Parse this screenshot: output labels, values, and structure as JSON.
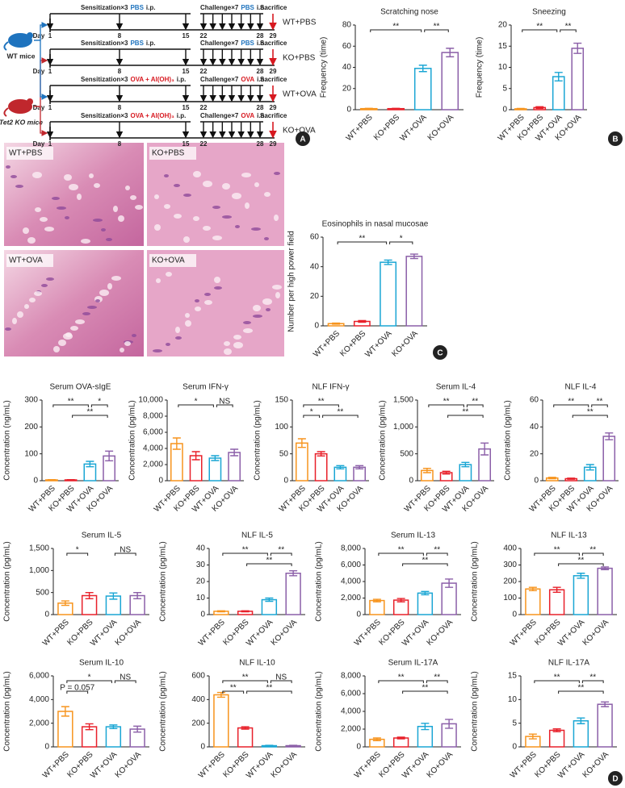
{
  "panel_labels": [
    "A",
    "B",
    "C",
    "D"
  ],
  "protocol": {
    "day_label": "Day",
    "days": [
      1,
      8,
      15,
      22,
      28,
      29
    ],
    "mice": [
      "WT mice",
      "Tet2 KO mice"
    ],
    "rows": [
      {
        "sensitization": "Sensitization×3",
        "sens_agent": "PBS",
        "sens_route": "i.p.",
        "challenge": "Challenge×7",
        "chal_agent": "PBS",
        "chal_route": "i.n.",
        "sacrifice": "Sacrifice",
        "group": "WT+PBS"
      },
      {
        "sensitization": "Sensitization×3",
        "sens_agent": "PBS",
        "sens_route": "i.p.",
        "challenge": "Challenge×7",
        "chal_agent": "PBS",
        "chal_route": "i.n.",
        "sacrifice": "Sacrifice",
        "group": "KO+PBS"
      },
      {
        "sensitization": "Sensitization×3",
        "sens_agent": "OVA + Al(OH)₃",
        "sens_route": "i.p.",
        "challenge": "Challenge×7",
        "chal_agent": "OVA",
        "chal_route": "i.n.",
        "sacrifice": "Sacrifice",
        "group": "WT+OVA"
      },
      {
        "sensitization": "Sensitization×3",
        "sens_agent": "OVA + Al(OH)₃",
        "sens_route": "i.p.",
        "challenge": "Challenge×7",
        "chal_agent": "OVA",
        "chal_route": "i.n.",
        "sacrifice": "Sacrifice",
        "group": "KO+OVA"
      }
    ]
  },
  "histology": {
    "labels": [
      "WT+PBS",
      "KO+PBS",
      "WT+OVA",
      "KO+OVA"
    ]
  },
  "chart_data": [
    {
      "type": "bar",
      "title": "Scratching nose",
      "ylabel": "Frequency (time)",
      "categories": [
        "WT+PBS",
        "KO+PBS",
        "WT+OVA",
        "KO+OVA"
      ],
      "colors": [
        "#f7941d",
        "#e8202a",
        "#1aa6d4",
        "#8b5fa8"
      ],
      "values": [
        1,
        1,
        39,
        54
      ],
      "errors": [
        0.3,
        0.3,
        3,
        4
      ],
      "ylim": [
        0,
        80
      ],
      "yticks": [
        0,
        20,
        40,
        60,
        80
      ],
      "brackets": [
        {
          "label": "**",
          "from": "WT+PBS",
          "to": "WT+OVA"
        },
        {
          "label": "**",
          "from": "WT+OVA",
          "to": "KO+OVA"
        }
      ]
    },
    {
      "type": "bar",
      "title": "Sneezing",
      "ylabel": "Frequency (time)",
      "categories": [
        "WT+PBS",
        "KO+PBS",
        "WT+OVA",
        "KO+OVA"
      ],
      "colors": [
        "#f7941d",
        "#e8202a",
        "#1aa6d4",
        "#8b5fa8"
      ],
      "values": [
        0.2,
        0.5,
        7.8,
        14.5
      ],
      "errors": [
        0.1,
        0.2,
        1,
        1.2
      ],
      "ylim": [
        0,
        20
      ],
      "yticks": [
        0,
        5,
        10,
        15,
        20
      ],
      "brackets": [
        {
          "label": "**",
          "from": "WT+PBS",
          "to": "WT+OVA"
        },
        {
          "label": "**",
          "from": "WT+OVA",
          "to": "KO+OVA"
        }
      ]
    },
    {
      "type": "bar",
      "title": "Eosinophils in nasal mucosae",
      "ylabel": "Number per high power field",
      "categories": [
        "WT+PBS",
        "KO+PBS",
        "WT+OVA",
        "KO+OVA"
      ],
      "colors": [
        "#f7941d",
        "#e8202a",
        "#1aa6d4",
        "#8b5fa8"
      ],
      "values": [
        1.5,
        3,
        43,
        47
      ],
      "errors": [
        0.4,
        0.6,
        1.5,
        1.5
      ],
      "ylim": [
        0,
        60
      ],
      "yticks": [
        0,
        20,
        40,
        60
      ],
      "brackets": [
        {
          "label": "**",
          "from": "WT+PBS",
          "to": "WT+OVA"
        },
        {
          "label": "*",
          "from": "WT+OVA",
          "to": "KO+OVA"
        }
      ]
    },
    {
      "type": "bar",
      "title": "Serum OVA-sIgE",
      "ylabel": "Concentration (ng/mL)",
      "categories": [
        "WT+PBS",
        "KO+PBS",
        "WT+OVA",
        "KO+OVA"
      ],
      "colors": [
        "#f7941d",
        "#e8202a",
        "#1aa6d4",
        "#8b5fa8"
      ],
      "values": [
        3,
        3,
        62,
        92
      ],
      "errors": [
        1,
        1,
        10,
        18
      ],
      "ylim": [
        0,
        300
      ],
      "yticks": [
        0,
        100,
        200,
        300
      ],
      "brackets": [
        {
          "label": "**",
          "from": "WT+PBS",
          "to": "WT+OVA"
        },
        {
          "label": "*",
          "from": "WT+OVA",
          "to": "KO+OVA"
        },
        {
          "label": "**",
          "from": "KO+PBS",
          "to": "KO+OVA"
        }
      ]
    },
    {
      "type": "bar",
      "title": "Serum IFN-γ",
      "ylabel": "Concentration (pg/mL)",
      "categories": [
        "WT+PBS",
        "KO+PBS",
        "WT+OVA",
        "KO+OVA"
      ],
      "colors": [
        "#f7941d",
        "#e8202a",
        "#1aa6d4",
        "#8b5fa8"
      ],
      "values": [
        4600,
        3100,
        2800,
        3500
      ],
      "errors": [
        700,
        500,
        300,
        400
      ],
      "ylim": [
        0,
        10000
      ],
      "yticks": [
        0,
        {
          "value": 2000,
          "label": "2,000"
        },
        {
          "value": 4000,
          "label": "4,000"
        },
        {
          "value": 6000,
          "label": "6,000"
        },
        {
          "value": 8000,
          "label": "8,000"
        },
        {
          "value": 10000,
          "label": "10,000"
        }
      ],
      "brackets": [
        {
          "label": "*",
          "from": "WT+PBS",
          "to": "WT+OVA"
        },
        {
          "label": "NS",
          "from": "WT+OVA",
          "to": "KO+OVA"
        }
      ]
    },
    {
      "type": "bar",
      "title": "NLF IFN-γ",
      "ylabel": "Concentration (pg/mL)",
      "categories": [
        "WT+PBS",
        "KO+PBS",
        "WT+OVA",
        "KO+OVA"
      ],
      "colors": [
        "#f7941d",
        "#e8202a",
        "#1aa6d4",
        "#8b5fa8"
      ],
      "values": [
        70,
        50,
        25,
        25
      ],
      "errors": [
        8,
        4,
        3,
        3
      ],
      "ylim": [
        0,
        150
      ],
      "yticks": [
        0,
        50,
        100,
        150
      ],
      "brackets": [
        {
          "label": "**",
          "from": "WT+PBS",
          "to": "WT+OVA"
        },
        {
          "label": "*",
          "from": "WT+PBS",
          "to": "KO+PBS"
        },
        {
          "label": "**",
          "from": "KO+PBS",
          "to": "KO+OVA"
        }
      ]
    },
    {
      "type": "bar",
      "title": "Serum IL-4",
      "ylabel": "Concentration (pg/mL)",
      "categories": [
        "WT+PBS",
        "KO+PBS",
        "WT+OVA",
        "KO+OVA"
      ],
      "colors": [
        "#f7941d",
        "#e8202a",
        "#1aa6d4",
        "#8b5fa8"
      ],
      "values": [
        190,
        150,
        300,
        590
      ],
      "errors": [
        40,
        25,
        40,
        110
      ],
      "ylim": [
        0,
        1500
      ],
      "yticks": [
        0,
        500,
        {
          "value": 1000,
          "label": "1,000"
        },
        {
          "value": 1500,
          "label": "1,500"
        }
      ],
      "brackets": [
        {
          "label": "**",
          "from": "WT+PBS",
          "to": "WT+OVA"
        },
        {
          "label": "**",
          "from": "WT+OVA",
          "to": "KO+OVA"
        },
        {
          "label": "**",
          "from": "KO+PBS",
          "to": "KO+OVA"
        }
      ]
    },
    {
      "type": "bar",
      "title": "NLF IL-4",
      "ylabel": "Concentration (pg/mL)",
      "categories": [
        "WT+PBS",
        "KO+PBS",
        "WT+OVA",
        "KO+OVA"
      ],
      "colors": [
        "#f7941d",
        "#e8202a",
        "#1aa6d4",
        "#8b5fa8"
      ],
      "values": [
        2,
        1.5,
        10,
        33
      ],
      "errors": [
        0.5,
        0.4,
        2,
        2.5
      ],
      "ylim": [
        0,
        60
      ],
      "yticks": [
        0,
        20,
        40,
        60
      ],
      "brackets": [
        {
          "label": "**",
          "from": "WT+PBS",
          "to": "WT+OVA"
        },
        {
          "label": "**",
          "from": "WT+OVA",
          "to": "KO+OVA"
        },
        {
          "label": "**",
          "from": "KO+PBS",
          "to": "KO+OVA"
        }
      ]
    },
    {
      "type": "bar",
      "title": "Serum IL-5",
      "ylabel": "Concentration (pg/mL)",
      "categories": [
        "WT+PBS",
        "KO+PBS",
        "WT+OVA",
        "KO+OVA"
      ],
      "colors": [
        "#f7941d",
        "#e8202a",
        "#1aa6d4",
        "#8b5fa8"
      ],
      "values": [
        260,
        430,
        420,
        430
      ],
      "errors": [
        50,
        70,
        70,
        70
      ],
      "ylim": [
        0,
        1500
      ],
      "yticks": [
        0,
        500,
        {
          "value": 1000,
          "label": "1,000"
        },
        {
          "value": 1500,
          "label": "1,500"
        }
      ],
      "brackets": [
        {
          "label": "*",
          "from": "WT+PBS",
          "to": "KO+PBS"
        },
        {
          "label": "NS",
          "from": "WT+OVA",
          "to": "KO+OVA"
        }
      ]
    },
    {
      "type": "bar",
      "title": "NLF IL-5",
      "ylabel": "Concentration (pg/mL)",
      "categories": [
        "WT+PBS",
        "KO+PBS",
        "WT+OVA",
        "KO+OVA"
      ],
      "colors": [
        "#f7941d",
        "#e8202a",
        "#1aa6d4",
        "#8b5fa8"
      ],
      "values": [
        2,
        2,
        9,
        25
      ],
      "errors": [
        0.3,
        0.3,
        1,
        1.5
      ],
      "ylim": [
        0,
        40
      ],
      "yticks": [
        0,
        10,
        20,
        30,
        40
      ],
      "brackets": [
        {
          "label": "**",
          "from": "WT+PBS",
          "to": "WT+OVA"
        },
        {
          "label": "**",
          "from": "WT+OVA",
          "to": "KO+OVA"
        },
        {
          "label": "**",
          "from": "KO+PBS",
          "to": "KO+OVA"
        }
      ]
    },
    {
      "type": "bar",
      "title": "Serum IL-13",
      "ylabel": "Concentration (pg/mL)",
      "categories": [
        "WT+PBS",
        "KO+PBS",
        "WT+OVA",
        "KO+OVA"
      ],
      "colors": [
        "#f7941d",
        "#e8202a",
        "#1aa6d4",
        "#8b5fa8"
      ],
      "values": [
        1700,
        1750,
        2600,
        3800
      ],
      "errors": [
        150,
        200,
        200,
        500
      ],
      "ylim": [
        0,
        8000
      ],
      "yticks": [
        0,
        {
          "value": 2000,
          "label": "2,000"
        },
        {
          "value": 4000,
          "label": "4,000"
        },
        {
          "value": 6000,
          "label": "6,000"
        },
        {
          "value": 8000,
          "label": "8,000"
        }
      ],
      "brackets": [
        {
          "label": "**",
          "from": "WT+PBS",
          "to": "WT+OVA"
        },
        {
          "label": "**",
          "from": "WT+OVA",
          "to": "KO+OVA"
        },
        {
          "label": "**",
          "from": "KO+PBS",
          "to": "KO+OVA"
        }
      ]
    },
    {
      "type": "bar",
      "title": "NLF IL-13",
      "ylabel": "Concentration (pg/mL)",
      "categories": [
        "WT+PBS",
        "KO+PBS",
        "WT+OVA",
        "KO+OVA"
      ],
      "colors": [
        "#f7941d",
        "#e8202a",
        "#1aa6d4",
        "#8b5fa8"
      ],
      "values": [
        155,
        150,
        235,
        280
      ],
      "errors": [
        10,
        15,
        15,
        8
      ],
      "ylim": [
        0,
        400
      ],
      "yticks": [
        0,
        100,
        200,
        300,
        400
      ],
      "brackets": [
        {
          "label": "**",
          "from": "WT+PBS",
          "to": "WT+OVA"
        },
        {
          "label": "**",
          "from": "WT+OVA",
          "to": "KO+OVA"
        },
        {
          "label": "**",
          "from": "KO+PBS",
          "to": "KO+OVA"
        }
      ]
    },
    {
      "type": "bar",
      "title": "Serum IL-10",
      "ylabel": "Concentration (pg/mL)",
      "categories": [
        "WT+PBS",
        "KO+PBS",
        "WT+OVA",
        "KO+OVA"
      ],
      "colors": [
        "#f7941d",
        "#e8202a",
        "#1aa6d4",
        "#8b5fa8"
      ],
      "values": [
        3000,
        1700,
        1700,
        1500
      ],
      "errors": [
        400,
        250,
        150,
        250
      ],
      "ylim": [
        0,
        6000
      ],
      "yticks": [
        0,
        {
          "value": 2000,
          "label": "2,000"
        },
        {
          "value": 4000,
          "label": "4,000"
        },
        {
          "value": 6000,
          "label": "6,000"
        }
      ],
      "brackets": [
        {
          "label": "*",
          "from": "WT+PBS",
          "to": "WT+OVA"
        },
        {
          "label": "NS",
          "from": "WT+OVA",
          "to": "KO+OVA"
        },
        {
          "label": "P = 0.057",
          "from": "WT+PBS",
          "to": "KO+PBS"
        }
      ]
    },
    {
      "type": "bar",
      "title": "NLF IL-10",
      "ylabel": "Concentration (pg/mL)",
      "categories": [
        "WT+PBS",
        "KO+PBS",
        "WT+OVA",
        "KO+OVA"
      ],
      "colors": [
        "#f7941d",
        "#e8202a",
        "#1aa6d4",
        "#8b5fa8"
      ],
      "values": [
        440,
        160,
        10,
        10
      ],
      "errors": [
        20,
        10,
        3,
        3
      ],
      "ylim": [
        0,
        600
      ],
      "yticks": [
        0,
        200,
        400,
        600
      ],
      "brackets": [
        {
          "label": "**",
          "from": "WT+PBS",
          "to": "WT+OVA"
        },
        {
          "label": "NS",
          "from": "WT+OVA",
          "to": "KO+OVA"
        },
        {
          "label": "**",
          "from": "WT+PBS",
          "to": "KO+PBS"
        },
        {
          "label": "**",
          "from": "KO+PBS",
          "to": "KO+OVA"
        }
      ]
    },
    {
      "type": "bar",
      "title": "Serum IL-17A",
      "ylabel": "Concentration (pg/mL)",
      "categories": [
        "WT+PBS",
        "KO+PBS",
        "WT+OVA",
        "KO+OVA"
      ],
      "colors": [
        "#f7941d",
        "#e8202a",
        "#1aa6d4",
        "#8b5fa8"
      ],
      "values": [
        850,
        1000,
        2300,
        2600
      ],
      "errors": [
        150,
        100,
        350,
        500
      ],
      "ylim": [
        0,
        8000
      ],
      "yticks": [
        0,
        {
          "value": 2000,
          "label": "2,000"
        },
        {
          "value": 4000,
          "label": "4,000"
        },
        {
          "value": 6000,
          "label": "6,000"
        },
        {
          "value": 8000,
          "label": "8,000"
        }
      ],
      "brackets": [
        {
          "label": "**",
          "from": "WT+PBS",
          "to": "WT+OVA"
        },
        {
          "label": "**",
          "from": "WT+OVA",
          "to": "KO+OVA"
        },
        {
          "label": "**",
          "from": "KO+PBS",
          "to": "KO+OVA"
        }
      ]
    },
    {
      "type": "bar",
      "title": "NLF IL-17A",
      "ylabel": "Concentration (pg/mL)",
      "categories": [
        "WT+PBS",
        "KO+PBS",
        "WT+OVA",
        "KO+OVA"
      ],
      "colors": [
        "#f7941d",
        "#e8202a",
        "#1aa6d4",
        "#8b5fa8"
      ],
      "values": [
        2.2,
        3.5,
        5.5,
        9
      ],
      "errors": [
        0.5,
        0.3,
        0.6,
        0.5
      ],
      "ylim": [
        0,
        15
      ],
      "yticks": [
        0,
        5,
        10,
        15
      ],
      "brackets": [
        {
          "label": "**",
          "from": "WT+PBS",
          "to": "WT+OVA"
        },
        {
          "label": "**",
          "from": "WT+OVA",
          "to": "KO+OVA"
        },
        {
          "label": "**",
          "from": "KO+PBS",
          "to": "KO+OVA"
        }
      ]
    }
  ]
}
